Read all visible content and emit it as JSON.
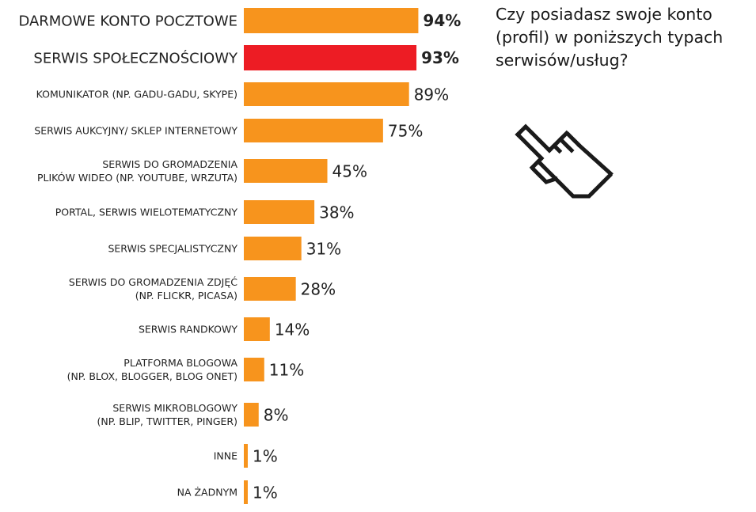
{
  "question": "Czy posiadasz swoje konto (profil) w poniższych typach serwisów/usług?",
  "icons": {
    "pointer": "pointing-hand-icon"
  },
  "colors": {
    "bar": "#f7941d",
    "highlight": "#ed1c24",
    "top_value": "#f7941d",
    "highlight_value": "#ed1c24",
    "text": "#222222"
  },
  "chart_data": {
    "type": "bar",
    "orientation": "horizontal",
    "title": "",
    "xlabel": "",
    "ylabel": "",
    "xlim": [
      0,
      100
    ],
    "grid": false,
    "legend": "none",
    "highlight_index": 1,
    "categories": [
      [
        "DARMOWE KONTO POCZTOWE"
      ],
      [
        "SERWIS SPOŁECZNOŚCIOWY"
      ],
      [
        "KOMUNIKATOR (NP. GADU-GADU, SKYPE)"
      ],
      [
        "SERWIS AUKCYJNY/ SKLEP INTERNETOWY"
      ],
      [
        "SERWIS DO GROMADZENIA",
        "PLIKÓW WIDEO (NP. YOUTUBE, WRZUTA)"
      ],
      [
        "PORTAL, SERWIS WIELOTEMATYCZNY"
      ],
      [
        "SERWIS SPECJALISTYCZNY"
      ],
      [
        "SERWIS DO GROMADZENIA ZDJĘĆ",
        "(NP. FLICKR, PICASA)"
      ],
      [
        "SERWIS RANDKOWY"
      ],
      [
        "PLATFORMA BLOGOWA",
        "(NP. BLOX, BLOGGER, BLOG ONET)"
      ],
      [
        "SERWIS MIKROBLOGOWY",
        "(NP. BLIP, TWITTER, PINGER)"
      ],
      [
        "INNE"
      ],
      [
        "NA ŻADNYM"
      ]
    ],
    "values": [
      94,
      93,
      89,
      75,
      45,
      38,
      31,
      28,
      14,
      11,
      8,
      1,
      1
    ],
    "value_labels": [
      "94%",
      "93%",
      "89%",
      "75%",
      "45%",
      "38%",
      "31%",
      "28%",
      "14%",
      "11%",
      "8%",
      "1%",
      "1%"
    ]
  }
}
